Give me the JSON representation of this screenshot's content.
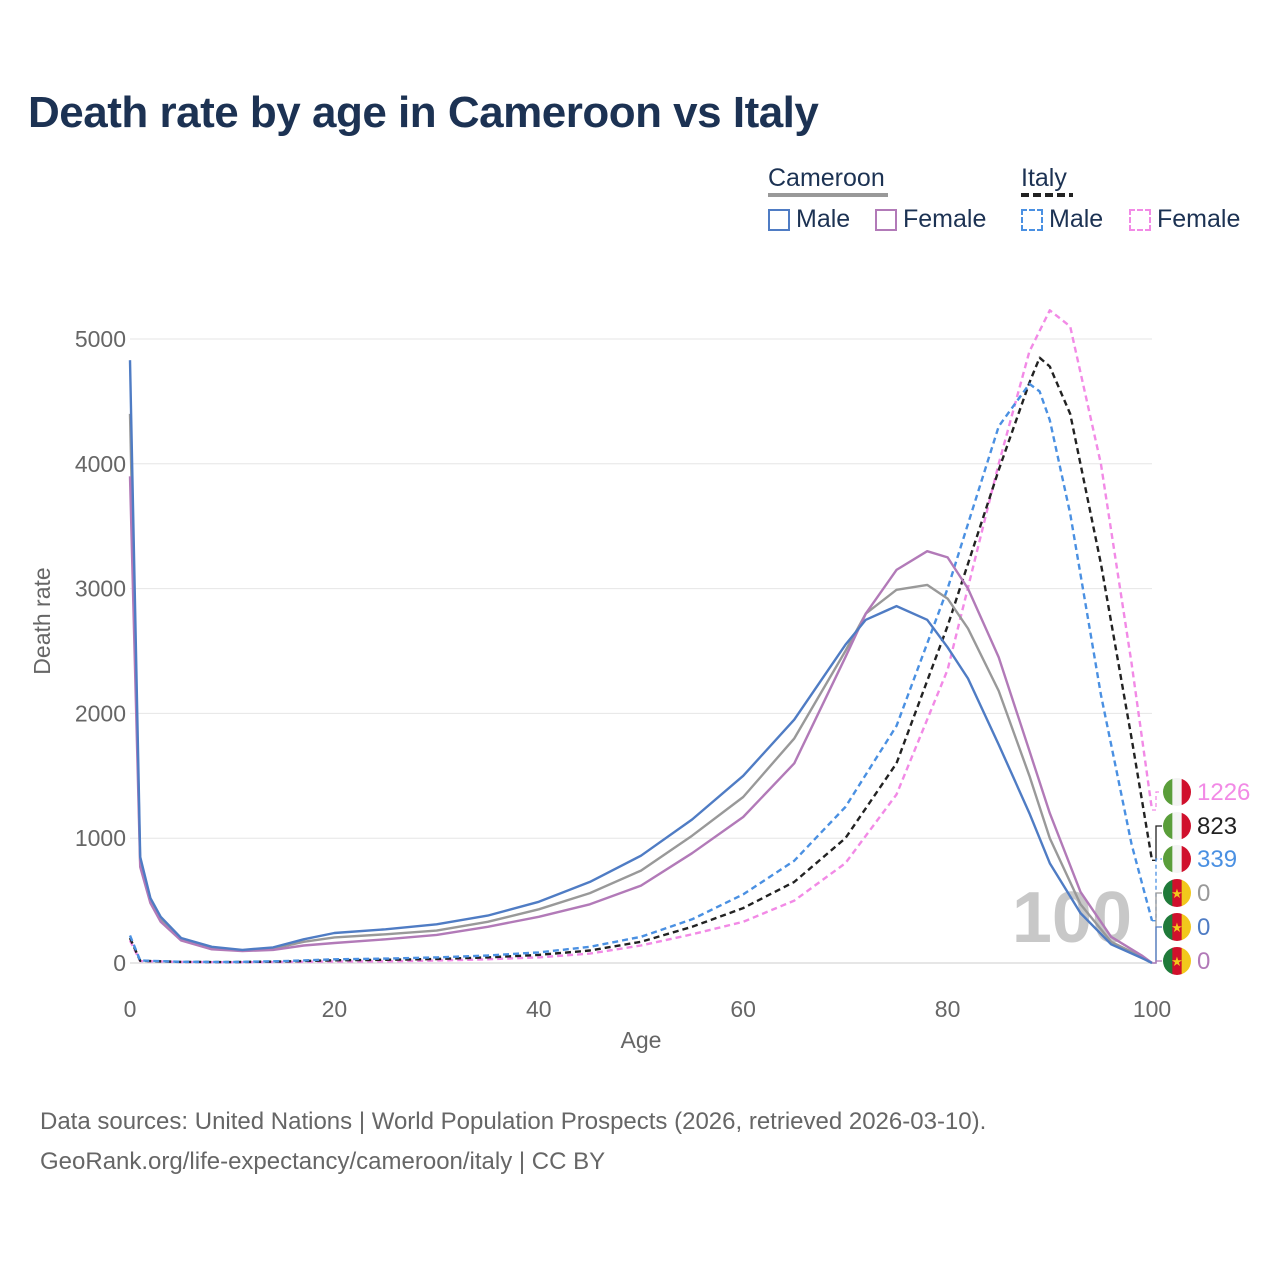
{
  "title": "Death rate by age in Cameroon vs Italy",
  "legend": {
    "groups": [
      {
        "name": "Cameroon",
        "line_color": "#999999",
        "line_style": "solid",
        "items": [
          {
            "label": "Male",
            "color": "#4f7cc4",
            "style": "solid"
          },
          {
            "label": "Female",
            "color": "#b27ab8",
            "style": "solid"
          }
        ]
      },
      {
        "name": "Italy",
        "line_color": "#222222",
        "line_style": "dashed",
        "items": [
          {
            "label": "Male",
            "color": "#4a90e2",
            "style": "dashed"
          },
          {
            "label": "Female",
            "color": "#f28ae6",
            "style": "dashed"
          }
        ]
      }
    ]
  },
  "year_watermark": "100",
  "sources": {
    "line1": "Data sources: United Nations | World Population Prospects (2026, retrieved 2026-03-10).",
    "line2": "GeoRank.org/life-expectancy/cameroon/italy | CC BY"
  },
  "chart_data": {
    "type": "line",
    "xlabel": "Age",
    "ylabel": "Death rate",
    "xlim": [
      0,
      100
    ],
    "ylim": [
      0,
      5000
    ],
    "xticks": [
      "0",
      "20",
      "40",
      "60",
      "80",
      "100"
    ],
    "yticks": [
      "0",
      "1000",
      "2000",
      "3000",
      "4000",
      "5000"
    ],
    "grid": true,
    "series": [
      {
        "name": "Italy Female",
        "color": "#f28ae6",
        "dash": true,
        "points": [
          [
            0,
            180
          ],
          [
            1,
            15
          ],
          [
            5,
            8
          ],
          [
            10,
            6
          ],
          [
            15,
            8
          ],
          [
            20,
            12
          ],
          [
            25,
            14
          ],
          [
            30,
            20
          ],
          [
            35,
            30
          ],
          [
            40,
            45
          ],
          [
            45,
            75
          ],
          [
            50,
            140
          ],
          [
            55,
            230
          ],
          [
            60,
            330
          ],
          [
            65,
            500
          ],
          [
            70,
            800
          ],
          [
            75,
            1350
          ],
          [
            80,
            2350
          ],
          [
            85,
            4000
          ],
          [
            88,
            4900
          ],
          [
            90,
            5230
          ],
          [
            92,
            5100
          ],
          [
            95,
            4000
          ],
          [
            98,
            2400
          ],
          [
            100,
            1226
          ]
        ]
      },
      {
        "name": "Italy Both",
        "color": "#222222",
        "dash": true,
        "points": [
          [
            0,
            200
          ],
          [
            1,
            18
          ],
          [
            5,
            9
          ],
          [
            10,
            7
          ],
          [
            15,
            12
          ],
          [
            20,
            22
          ],
          [
            25,
            26
          ],
          [
            30,
            32
          ],
          [
            35,
            45
          ],
          [
            40,
            65
          ],
          [
            45,
            100
          ],
          [
            50,
            170
          ],
          [
            55,
            290
          ],
          [
            60,
            440
          ],
          [
            65,
            650
          ],
          [
            70,
            1000
          ],
          [
            75,
            1600
          ],
          [
            80,
            2700
          ],
          [
            85,
            3950
          ],
          [
            88,
            4650
          ],
          [
            89,
            4850
          ],
          [
            90,
            4780
          ],
          [
            92,
            4400
          ],
          [
            95,
            3200
          ],
          [
            98,
            1800
          ],
          [
            100,
            823
          ]
        ]
      },
      {
        "name": "Italy Male",
        "color": "#4a90e2",
        "dash": true,
        "points": [
          [
            0,
            220
          ],
          [
            1,
            20
          ],
          [
            5,
            10
          ],
          [
            10,
            8
          ],
          [
            15,
            15
          ],
          [
            20,
            30
          ],
          [
            25,
            35
          ],
          [
            30,
            45
          ],
          [
            35,
            60
          ],
          [
            40,
            85
          ],
          [
            45,
            130
          ],
          [
            50,
            210
          ],
          [
            55,
            350
          ],
          [
            60,
            550
          ],
          [
            65,
            820
          ],
          [
            70,
            1250
          ],
          [
            75,
            1900
          ],
          [
            80,
            3000
          ],
          [
            85,
            4300
          ],
          [
            88,
            4640
          ],
          [
            89,
            4580
          ],
          [
            90,
            4350
          ],
          [
            92,
            3600
          ],
          [
            95,
            2150
          ],
          [
            98,
            950
          ],
          [
            100,
            339
          ]
        ]
      },
      {
        "name": "Cameroon Both",
        "color": "#999999",
        "dash": false,
        "points": [
          [
            0,
            4400
          ],
          [
            1,
            800
          ],
          [
            2,
            500
          ],
          [
            3,
            350
          ],
          [
            5,
            190
          ],
          [
            8,
            120
          ],
          [
            11,
            100
          ],
          [
            14,
            115
          ],
          [
            17,
            170
          ],
          [
            20,
            205
          ],
          [
            25,
            230
          ],
          [
            30,
            260
          ],
          [
            35,
            330
          ],
          [
            40,
            430
          ],
          [
            45,
            560
          ],
          [
            50,
            740
          ],
          [
            55,
            1020
          ],
          [
            60,
            1330
          ],
          [
            65,
            1800
          ],
          [
            70,
            2500
          ],
          [
            72,
            2800
          ],
          [
            75,
            2990
          ],
          [
            78,
            3030
          ],
          [
            80,
            2920
          ],
          [
            82,
            2680
          ],
          [
            85,
            2180
          ],
          [
            88,
            1500
          ],
          [
            90,
            1000
          ],
          [
            93,
            470
          ],
          [
            96,
            170
          ],
          [
            99,
            50
          ],
          [
            100,
            0
          ]
        ]
      },
      {
        "name": "Cameroon Female",
        "color": "#b27ab8",
        "dash": false,
        "points": [
          [
            0,
            3900
          ],
          [
            1,
            770
          ],
          [
            2,
            480
          ],
          [
            3,
            330
          ],
          [
            5,
            180
          ],
          [
            8,
            110
          ],
          [
            11,
            95
          ],
          [
            14,
            105
          ],
          [
            17,
            140
          ],
          [
            20,
            160
          ],
          [
            25,
            190
          ],
          [
            30,
            225
          ],
          [
            35,
            290
          ],
          [
            40,
            370
          ],
          [
            45,
            470
          ],
          [
            50,
            620
          ],
          [
            55,
            880
          ],
          [
            60,
            1170
          ],
          [
            65,
            1600
          ],
          [
            70,
            2450
          ],
          [
            72,
            2800
          ],
          [
            75,
            3150
          ],
          [
            78,
            3300
          ],
          [
            80,
            3250
          ],
          [
            82,
            3000
          ],
          [
            85,
            2450
          ],
          [
            88,
            1700
          ],
          [
            90,
            1200
          ],
          [
            93,
            570
          ],
          [
            96,
            210
          ],
          [
            99,
            60
          ],
          [
            100,
            0
          ]
        ]
      },
      {
        "name": "Cameroon Male",
        "color": "#4f7cc4",
        "dash": false,
        "points": [
          [
            0,
            4830
          ],
          [
            1,
            850
          ],
          [
            2,
            520
          ],
          [
            3,
            370
          ],
          [
            5,
            200
          ],
          [
            8,
            130
          ],
          [
            11,
            105
          ],
          [
            14,
            125
          ],
          [
            17,
            190
          ],
          [
            20,
            240
          ],
          [
            25,
            270
          ],
          [
            30,
            310
          ],
          [
            35,
            380
          ],
          [
            40,
            490
          ],
          [
            45,
            650
          ],
          [
            50,
            860
          ],
          [
            55,
            1150
          ],
          [
            60,
            1500
          ],
          [
            65,
            1950
          ],
          [
            70,
            2550
          ],
          [
            72,
            2750
          ],
          [
            75,
            2860
          ],
          [
            78,
            2750
          ],
          [
            80,
            2530
          ],
          [
            82,
            2280
          ],
          [
            85,
            1750
          ],
          [
            88,
            1200
          ],
          [
            90,
            800
          ],
          [
            93,
            400
          ],
          [
            96,
            150
          ],
          [
            99,
            40
          ],
          [
            100,
            0
          ]
        ]
      }
    ],
    "end_labels": [
      {
        "value": "1226",
        "color": "#f28ae6",
        "country": "Italy"
      },
      {
        "value": "823",
        "color": "#222222",
        "country": "Italy"
      },
      {
        "value": "339",
        "color": "#4a90e2",
        "country": "Italy"
      },
      {
        "value": "0",
        "color": "#999999",
        "country": "Cameroon"
      },
      {
        "value": "0",
        "color": "#4f7cc4",
        "country": "Cameroon"
      },
      {
        "value": "0",
        "color": "#b27ab8",
        "country": "Cameroon"
      }
    ]
  }
}
